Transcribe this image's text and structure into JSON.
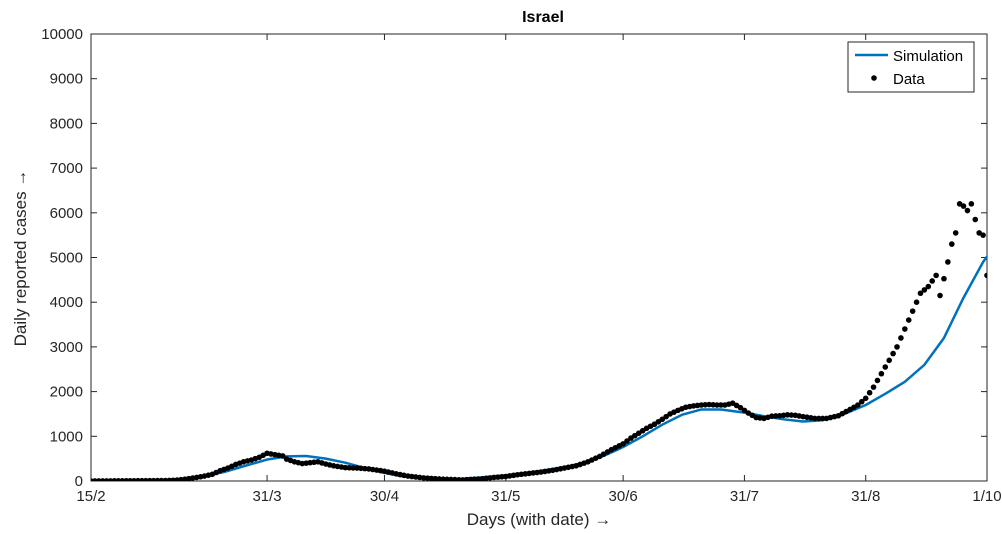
{
  "chart_data": {
    "type": "line",
    "title": "Israel",
    "xlabel": "Days (with date) →",
    "ylabel": "Daily reported cases →",
    "x_type": "date",
    "x_start_date": "2020-02-15",
    "x_end_date": "2020-10-01",
    "xlim": [
      "15/2",
      "1/10"
    ],
    "ylim": [
      0,
      10000
    ],
    "grid": false,
    "legend_position": "top-right",
    "x_ticks": [
      {
        "label": "15/2",
        "date": "2020-02-15"
      },
      {
        "label": "31/3",
        "date": "2020-03-31"
      },
      {
        "label": "30/4",
        "date": "2020-04-30"
      },
      {
        "label": "31/5",
        "date": "2020-05-31"
      },
      {
        "label": "30/6",
        "date": "2020-06-30"
      },
      {
        "label": "31/7",
        "date": "2020-07-31"
      },
      {
        "label": "31/8",
        "date": "2020-08-31"
      },
      {
        "label": "1/10",
        "date": "2020-10-01"
      }
    ],
    "y_ticks": [
      0,
      1000,
      2000,
      3000,
      4000,
      5000,
      6000,
      7000,
      8000,
      9000,
      10000
    ],
    "series": [
      {
        "name": "Simulation",
        "style": "line",
        "color": "#0072BD",
        "points": [
          [
            "2020-02-15",
            0
          ],
          [
            "2020-03-01",
            5
          ],
          [
            "2020-03-10",
            50
          ],
          [
            "2020-03-15",
            110
          ],
          [
            "2020-03-20",
            200
          ],
          [
            "2020-03-25",
            330
          ],
          [
            "2020-03-31",
            480
          ],
          [
            "2020-04-05",
            550
          ],
          [
            "2020-04-10",
            560
          ],
          [
            "2020-04-15",
            500
          ],
          [
            "2020-04-20",
            410
          ],
          [
            "2020-04-25",
            290
          ],
          [
            "2020-04-30",
            180
          ],
          [
            "2020-05-05",
            100
          ],
          [
            "2020-05-10",
            55
          ],
          [
            "2020-05-15",
            40
          ],
          [
            "2020-05-20",
            50
          ],
          [
            "2020-05-25",
            80
          ],
          [
            "2020-05-31",
            130
          ],
          [
            "2020-06-05",
            180
          ],
          [
            "2020-06-10",
            240
          ],
          [
            "2020-06-15",
            310
          ],
          [
            "2020-06-20",
            410
          ],
          [
            "2020-06-25",
            560
          ],
          [
            "2020-06-30",
            760
          ],
          [
            "2020-07-05",
            1000
          ],
          [
            "2020-07-10",
            1260
          ],
          [
            "2020-07-15",
            1480
          ],
          [
            "2020-07-20",
            1600
          ],
          [
            "2020-07-25",
            1600
          ],
          [
            "2020-07-31",
            1530
          ],
          [
            "2020-08-05",
            1450
          ],
          [
            "2020-08-10",
            1380
          ],
          [
            "2020-08-15",
            1330
          ],
          [
            "2020-08-20",
            1360
          ],
          [
            "2020-08-25",
            1480
          ],
          [
            "2020-08-31",
            1700
          ],
          [
            "2020-09-05",
            1950
          ],
          [
            "2020-09-10",
            2220
          ],
          [
            "2020-09-15",
            2600
          ],
          [
            "2020-09-20",
            3200
          ],
          [
            "2020-09-25",
            4100
          ],
          [
            "2020-09-30",
            4900
          ],
          [
            "2020-10-05",
            5500
          ],
          [
            "2020-10-10",
            5750
          ],
          [
            "2020-10-15",
            5800
          ]
        ]
      },
      {
        "name": "Data",
        "style": "markers",
        "color": "#000000",
        "points": [
          [
            "2020-02-15",
            0
          ],
          [
            "2020-03-05",
            10
          ],
          [
            "2020-03-08",
            20
          ],
          [
            "2020-03-10",
            40
          ],
          [
            "2020-03-13",
            80
          ],
          [
            "2020-03-15",
            110
          ],
          [
            "2020-03-17",
            150
          ],
          [
            "2020-03-19",
            230
          ],
          [
            "2020-03-21",
            290
          ],
          [
            "2020-03-23",
            370
          ],
          [
            "2020-03-25",
            430
          ],
          [
            "2020-03-27",
            470
          ],
          [
            "2020-03-29",
            530
          ],
          [
            "2020-03-31",
            620
          ],
          [
            "2020-04-02",
            590
          ],
          [
            "2020-04-04",
            560
          ],
          [
            "2020-04-05",
            490
          ],
          [
            "2020-04-07",
            430
          ],
          [
            "2020-04-09",
            390
          ],
          [
            "2020-04-11",
            410
          ],
          [
            "2020-04-13",
            430
          ],
          [
            "2020-04-15",
            380
          ],
          [
            "2020-04-17",
            340
          ],
          [
            "2020-04-20",
            300
          ],
          [
            "2020-04-23",
            290
          ],
          [
            "2020-04-26",
            270
          ],
          [
            "2020-04-30",
            220
          ],
          [
            "2020-05-03",
            160
          ],
          [
            "2020-05-06",
            110
          ],
          [
            "2020-05-10",
            70
          ],
          [
            "2020-05-15",
            40
          ],
          [
            "2020-05-20",
            25
          ],
          [
            "2020-05-25",
            50
          ],
          [
            "2020-05-28",
            80
          ],
          [
            "2020-05-31",
            100
          ],
          [
            "2020-06-03",
            140
          ],
          [
            "2020-06-06",
            170
          ],
          [
            "2020-06-09",
            200
          ],
          [
            "2020-06-12",
            240
          ],
          [
            "2020-06-15",
            290
          ],
          [
            "2020-06-18",
            340
          ],
          [
            "2020-06-21",
            430
          ],
          [
            "2020-06-24",
            550
          ],
          [
            "2020-06-27",
            700
          ],
          [
            "2020-06-30",
            830
          ],
          [
            "2020-07-02",
            960
          ],
          [
            "2020-07-04",
            1070
          ],
          [
            "2020-07-06",
            1180
          ],
          [
            "2020-07-08",
            1270
          ],
          [
            "2020-07-10",
            1380
          ],
          [
            "2020-07-12",
            1500
          ],
          [
            "2020-07-14",
            1580
          ],
          [
            "2020-07-16",
            1650
          ],
          [
            "2020-07-18",
            1680
          ],
          [
            "2020-07-20",
            1700
          ],
          [
            "2020-07-22",
            1710
          ],
          [
            "2020-07-24",
            1700
          ],
          [
            "2020-07-26",
            1700
          ],
          [
            "2020-07-28",
            1740
          ],
          [
            "2020-07-30",
            1640
          ],
          [
            "2020-08-01",
            1520
          ],
          [
            "2020-08-03",
            1420
          ],
          [
            "2020-08-05",
            1400
          ],
          [
            "2020-08-07",
            1450
          ],
          [
            "2020-08-09",
            1460
          ],
          [
            "2020-08-11",
            1480
          ],
          [
            "2020-08-13",
            1470
          ],
          [
            "2020-08-15",
            1440
          ],
          [
            "2020-08-18",
            1400
          ],
          [
            "2020-08-21",
            1400
          ],
          [
            "2020-08-24",
            1460
          ],
          [
            "2020-08-27",
            1600
          ],
          [
            "2020-08-29",
            1700
          ],
          [
            "2020-08-31",
            1850
          ],
          [
            "2020-09-02",
            2100
          ],
          [
            "2020-09-04",
            2400
          ],
          [
            "2020-09-06",
            2700
          ],
          [
            "2020-09-08",
            3000
          ],
          [
            "2020-09-10",
            3400
          ],
          [
            "2020-09-12",
            3800
          ],
          [
            "2020-09-14",
            4200
          ],
          [
            "2020-09-16",
            4350
          ],
          [
            "2020-09-18",
            4600
          ],
          [
            "2020-09-19",
            4150
          ],
          [
            "2020-09-21",
            4900
          ],
          [
            "2020-09-22",
            5300
          ],
          [
            "2020-09-23",
            5550
          ],
          [
            "2020-09-24",
            6200
          ],
          [
            "2020-09-25",
            6150
          ],
          [
            "2020-09-26",
            6050
          ],
          [
            "2020-09-27",
            6200
          ],
          [
            "2020-09-28",
            5850
          ],
          [
            "2020-09-29",
            5550
          ],
          [
            "2020-09-30",
            5500
          ],
          [
            "2020-10-01",
            4600
          ]
        ]
      }
    ]
  }
}
